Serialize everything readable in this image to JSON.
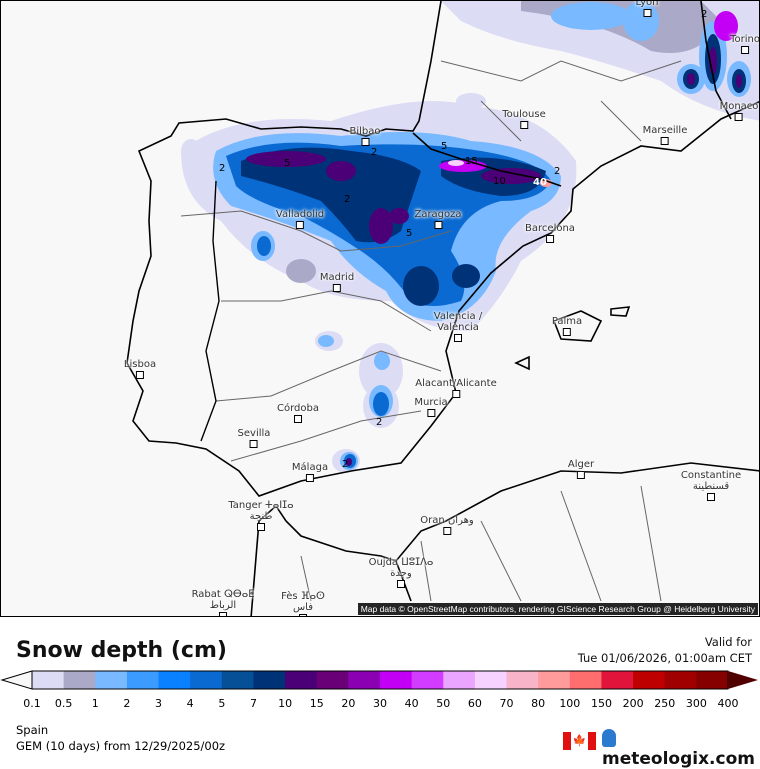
{
  "title": "Snow depth (cm)",
  "valid_label": "Valid for",
  "valid_time": "Tue 01/06/2026, 01:00am CET",
  "legend": {
    "ticks": [
      "0.1",
      "0.5",
      "1",
      "2",
      "3",
      "4",
      "5",
      "7",
      "10",
      "15",
      "20",
      "30",
      "40",
      "50",
      "60",
      "70",
      "80",
      "100",
      "150",
      "200",
      "250",
      "300",
      "400"
    ],
    "colors": [
      "#dcdcf5",
      "#aaaac8",
      "#78b9ff",
      "#3c9bff",
      "#0a82ff",
      "#0a6ad2",
      "#055096",
      "#003278",
      "#4b0078",
      "#690078",
      "#8c00b4",
      "#c300f5",
      "#d23cff",
      "#e9a5ff",
      "#f5d2ff",
      "#f8b4c8",
      "#ff9b9b",
      "#ff6e6e",
      "#e1143c",
      "#be0000",
      "#a00000",
      "#870000"
    ],
    "under_color": "#f8f8f8",
    "over_color": "#500000"
  },
  "region": "Spain",
  "model_line": "GEM (10 days) from  12/29/2025/00z",
  "logo_text": "meteologix.com",
  "flag": "canada-flag",
  "attribution": "Map data © OpenStreetMap contributors, rendering GIScience Research Group @ Heidelberg University",
  "cities": [
    {
      "name": "Lyon"
    },
    {
      "name": "Torino"
    },
    {
      "name": "Monaco"
    },
    {
      "name": "Marseille"
    },
    {
      "name": "Toulouse"
    },
    {
      "name": "Bilbao"
    },
    {
      "name": "Zaragoza"
    },
    {
      "name": "Barcelona"
    },
    {
      "name": "Valladolid"
    },
    {
      "name": "Madrid"
    },
    {
      "name": "Valencia / València"
    },
    {
      "name": "Palma"
    },
    {
      "name": "Lisboa"
    },
    {
      "name": "Alacant/Alicante"
    },
    {
      "name": "Murcia"
    },
    {
      "name": "Córdoba"
    },
    {
      "name": "Sevilla"
    },
    {
      "name": "Málaga"
    },
    {
      "name": "Alger"
    },
    {
      "name": "Constantine قسنطينة"
    },
    {
      "name": "Tanger ⵜⴰⵏⵊⴰ طنجة"
    },
    {
      "name": "Oran وهران"
    },
    {
      "name": "Oujda ⵡⵓⵊⴷⴰ وجدة"
    },
    {
      "name": "Rabat ⵕⴱⴰⵟ الرباط"
    },
    {
      "name": "Fès ⴼⴰⵙ فاس"
    }
  ],
  "contour_labels": [
    "2",
    "5",
    "2",
    "2",
    "5",
    "15",
    "10",
    "2",
    "5",
    "2",
    "2",
    "2",
    "40"
  ]
}
